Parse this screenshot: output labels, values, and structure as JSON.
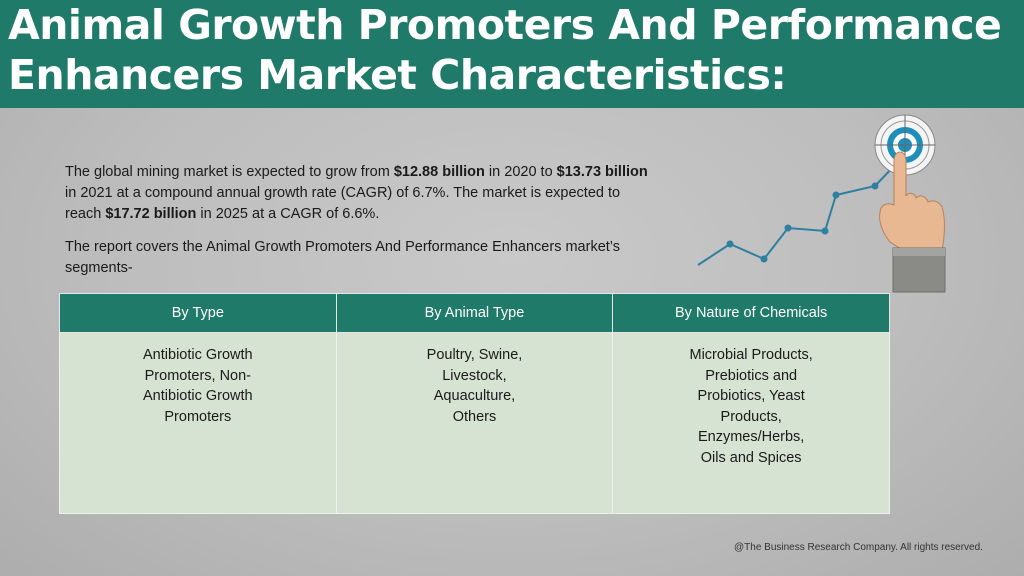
{
  "title": {
    "line1": "Animal Growth Promoters And Performance",
    "line2": "Enhancers Market Characteristics:"
  },
  "intro": {
    "p1_a": "The global mining market is expected to grow from ",
    "p1_b": "$12.88 billion",
    "p1_c": " in 2020 to ",
    "p1_d": "$13.73 billion",
    "p1_e": " in 2021 at a compound annual growth rate (CAGR) of 6.7%. The market is expected to reach ",
    "p1_f": "$17.72 billion",
    "p1_g": " in 2025 at a CAGR of 6.6%.",
    "p2": "The report covers the Animal Growth Promoters And Performance Enhancers market’s segments-"
  },
  "table": {
    "headers": [
      "By Type",
      "By Animal Type",
      "By Nature of Chemicals"
    ],
    "cells": [
      "Antibiotic Growth Promoters, Non-Antibiotic Growth Promoters",
      "Poultry, Swine, Livestock, Aquaculture, Others",
      "Microbial Products, Prebiotics and Probiotics, Yeast Products, Enzymes/Herbs, Oils and Spices"
    ]
  },
  "footer": "@The Business Research Company. All rights reserved.",
  "colors": {
    "accent": "#1f7a6a",
    "table_body": "#d6e2d2",
    "chart_line": "#2f7fa0"
  },
  "icons": [
    "growth-chart-icon",
    "target-icon",
    "pointing-hand-icon"
  ]
}
